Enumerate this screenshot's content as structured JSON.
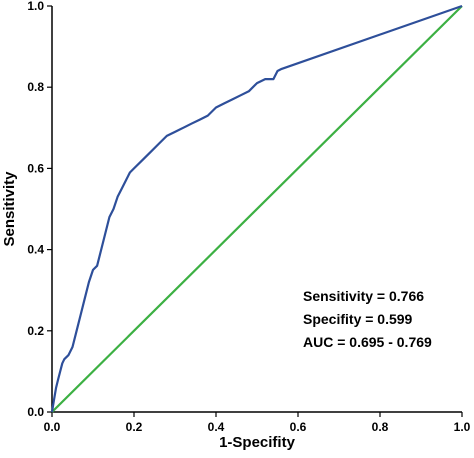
{
  "chart_data": {
    "type": "line",
    "title": "",
    "xlabel": "1-Specifity",
    "ylabel": "Sensitivity",
    "xlim": [
      0,
      1
    ],
    "ylim": [
      0,
      1
    ],
    "xticks": [
      "0.0",
      "0.2",
      "0.4",
      "0.6",
      "0.8",
      "1.0"
    ],
    "yticks": [
      "0.0",
      "0.2",
      "0.4",
      "0.6",
      "0.8",
      "1.0"
    ],
    "grid": false,
    "legend": "none",
    "annotations": [
      "Sensitivity = 0.766",
      "Specifity = 0.599",
      "AUC = 0.695 - 0.769"
    ],
    "series": [
      {
        "color": "#2e4f9a",
        "x": [
          0,
          0.005,
          0.01,
          0.015,
          0.02,
          0.025,
          0.03,
          0.04,
          0.05,
          0.06,
          0.07,
          0.08,
          0.09,
          0.1,
          0.11,
          0.12,
          0.13,
          0.14,
          0.15,
          0.16,
          0.17,
          0.18,
          0.19,
          0.2,
          0.22,
          0.24,
          0.26,
          0.28,
          0.3,
          0.32,
          0.34,
          0.36,
          0.38,
          0.4,
          0.42,
          0.44,
          0.46,
          0.48,
          0.5,
          0.52,
          0.54,
          0.55,
          0.56,
          1.0
        ],
        "y": [
          0,
          0.03,
          0.06,
          0.08,
          0.1,
          0.12,
          0.13,
          0.14,
          0.16,
          0.2,
          0.24,
          0.28,
          0.32,
          0.35,
          0.36,
          0.4,
          0.44,
          0.48,
          0.5,
          0.53,
          0.55,
          0.57,
          0.59,
          0.6,
          0.62,
          0.64,
          0.66,
          0.68,
          0.69,
          0.7,
          0.71,
          0.72,
          0.73,
          0.75,
          0.76,
          0.77,
          0.78,
          0.79,
          0.81,
          0.82,
          0.82,
          0.84,
          0.845,
          1.0
        ]
      },
      {
        "color": "#3cb043",
        "x": [
          0,
          1
        ],
        "y": [
          0,
          1
        ]
      }
    ]
  }
}
